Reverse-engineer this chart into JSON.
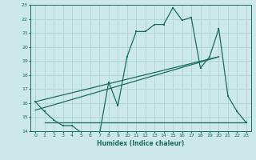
{
  "xlabel": "Humidex (Indice chaleur)",
  "xlim": [
    -0.5,
    23.5
  ],
  "ylim": [
    14,
    23
  ],
  "yticks": [
    14,
    15,
    16,
    17,
    18,
    19,
    20,
    21,
    22,
    23
  ],
  "xticks": [
    0,
    1,
    2,
    3,
    4,
    5,
    6,
    7,
    8,
    9,
    10,
    11,
    12,
    13,
    14,
    15,
    16,
    17,
    18,
    19,
    20,
    21,
    22,
    23
  ],
  "bg_color": "#cce8e8",
  "line_color": "#1a6b60",
  "grid_color": "#b0d8d8",
  "series1": {
    "x": [
      0,
      1,
      2,
      3,
      4,
      5,
      6,
      7,
      8,
      9,
      10,
      11,
      12,
      13,
      14,
      15,
      16,
      17,
      18,
      19,
      20,
      21,
      22,
      23
    ],
    "y": [
      16.1,
      15.4,
      14.8,
      14.4,
      14.4,
      13.9,
      13.8,
      13.8,
      17.5,
      15.8,
      19.3,
      21.1,
      21.1,
      21.6,
      21.6,
      22.8,
      21.9,
      22.1,
      18.5,
      19.3,
      21.3,
      16.5,
      15.4,
      14.6
    ]
  },
  "series2": {
    "x": [
      1,
      14,
      23
    ],
    "y": [
      14.6,
      14.6,
      14.6
    ]
  },
  "series3": {
    "x": [
      0,
      20
    ],
    "y": [
      15.5,
      19.3
    ]
  },
  "series4": {
    "x": [
      0,
      20
    ],
    "y": [
      16.1,
      19.3
    ]
  }
}
